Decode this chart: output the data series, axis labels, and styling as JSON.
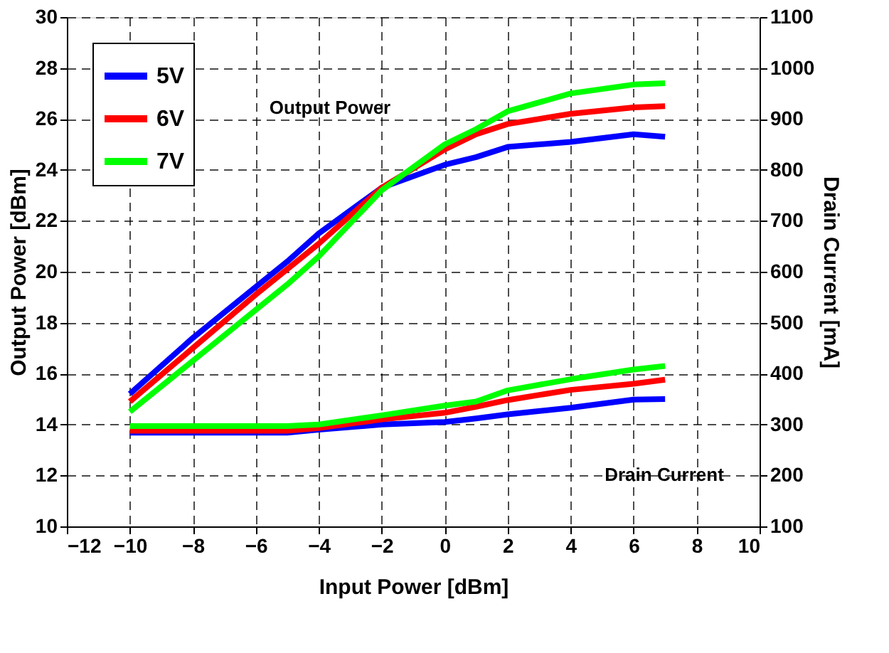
{
  "chart_data": {
    "type": "line",
    "xlabel": "Input Power [dBm]",
    "ylabel": "Output Power [dBm]",
    "y2label": "Drain Current [mA]",
    "x": [
      -10,
      -8,
      -6,
      -5,
      -4,
      -2,
      0,
      1,
      2,
      4,
      6,
      7
    ],
    "series": [
      {
        "name": "5V",
        "color": "#0000ff",
        "values": [
          15.2,
          17.4,
          19.4,
          20.4,
          21.5,
          23.3,
          24.2,
          24.5,
          24.9,
          25.1,
          25.4,
          25.3
        ]
      },
      {
        "name": "6V",
        "color": "#ff0000",
        "values": [
          14.9,
          17.0,
          19.1,
          20.1,
          21.1,
          23.3,
          24.8,
          25.4,
          25.8,
          26.2,
          26.45,
          26.5
        ]
      },
      {
        "name": "7V",
        "color": "#00ff00",
        "values": [
          14.5,
          16.5,
          18.5,
          19.5,
          20.6,
          23.2,
          25.0,
          25.6,
          26.3,
          27.0,
          27.35,
          27.4
        ]
      },
      {
        "axis": "y2",
        "color": "#0000ff",
        "values": [
          284,
          284,
          284,
          284,
          290,
          300,
          305,
          312,
          320,
          333,
          349,
          350
        ]
      },
      {
        "axis": "y2",
        "color": "#ff0000",
        "values": [
          288,
          288,
          288,
          288,
          293,
          310,
          323,
          335,
          348,
          368,
          380,
          388
        ]
      },
      {
        "axis": "y2",
        "color": "#00ff00",
        "values": [
          297,
          297,
          297,
          297,
          300,
          318,
          337,
          345,
          367,
          389,
          408,
          415
        ]
      }
    ],
    "xlim": [
      -12,
      10
    ],
    "xticks": [
      -12,
      -10,
      -8,
      -6,
      -4,
      -2,
      0,
      2,
      4,
      6,
      8,
      10
    ],
    "ylim": [
      10,
      30
    ],
    "yticks": [
      10,
      12,
      14,
      16,
      18,
      20,
      22,
      24,
      26,
      28,
      30
    ],
    "y2lim": [
      100,
      1100
    ],
    "y2ticks": [
      100,
      200,
      300,
      400,
      500,
      600,
      700,
      800,
      900,
      1000,
      1100
    ],
    "annotations": [
      "Output Power",
      "Drain Current"
    ],
    "grid": true,
    "legend": "top left",
    "line_style": "solid",
    "marker": "none"
  }
}
